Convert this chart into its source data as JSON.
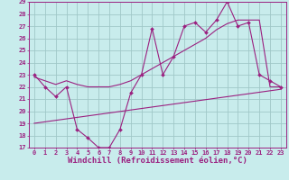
{
  "xlabel": "Windchill (Refroidissement éolien,°C)",
  "background_color": "#c8ecec",
  "grid_color": "#a0c8c8",
  "line_color": "#9b2080",
  "xlim": [
    -0.5,
    23.5
  ],
  "ylim": [
    17,
    29
  ],
  "yticks": [
    17,
    18,
    19,
    20,
    21,
    22,
    23,
    24,
    25,
    26,
    27,
    28,
    29
  ],
  "xticks": [
    0,
    1,
    2,
    3,
    4,
    5,
    6,
    7,
    8,
    9,
    10,
    11,
    12,
    13,
    14,
    15,
    16,
    17,
    18,
    19,
    20,
    21,
    22,
    23
  ],
  "line1_x": [
    0,
    1,
    2,
    3,
    4,
    5,
    6,
    7,
    8,
    9,
    10,
    11,
    12,
    13,
    14,
    15,
    16,
    17,
    18,
    19,
    20,
    21,
    22,
    23
  ],
  "line1_y": [
    23,
    22,
    21.2,
    22,
    18.5,
    17.8,
    17,
    17,
    18.5,
    21.5,
    23,
    26.8,
    23,
    24.5,
    27,
    27.3,
    26.5,
    27.5,
    29,
    27,
    27.3,
    23,
    22.5,
    22
  ],
  "line2_x": [
    0,
    1,
    2,
    3,
    4,
    5,
    6,
    7,
    8,
    9,
    10,
    11,
    12,
    13,
    14,
    15,
    16,
    17,
    18,
    19,
    20,
    21,
    22,
    23
  ],
  "line2_y": [
    22.8,
    22.5,
    22.2,
    22.5,
    22.2,
    22.0,
    22.0,
    22.0,
    22.2,
    22.5,
    23.0,
    23.5,
    24.0,
    24.5,
    25.0,
    25.5,
    26.0,
    26.7,
    27.2,
    27.5,
    27.5,
    27.5,
    22.0,
    22.0
  ],
  "line3_x": [
    0,
    23
  ],
  "line3_y": [
    19.0,
    21.8
  ],
  "tick_fontsize": 5,
  "xlabel_fontsize": 6.5
}
